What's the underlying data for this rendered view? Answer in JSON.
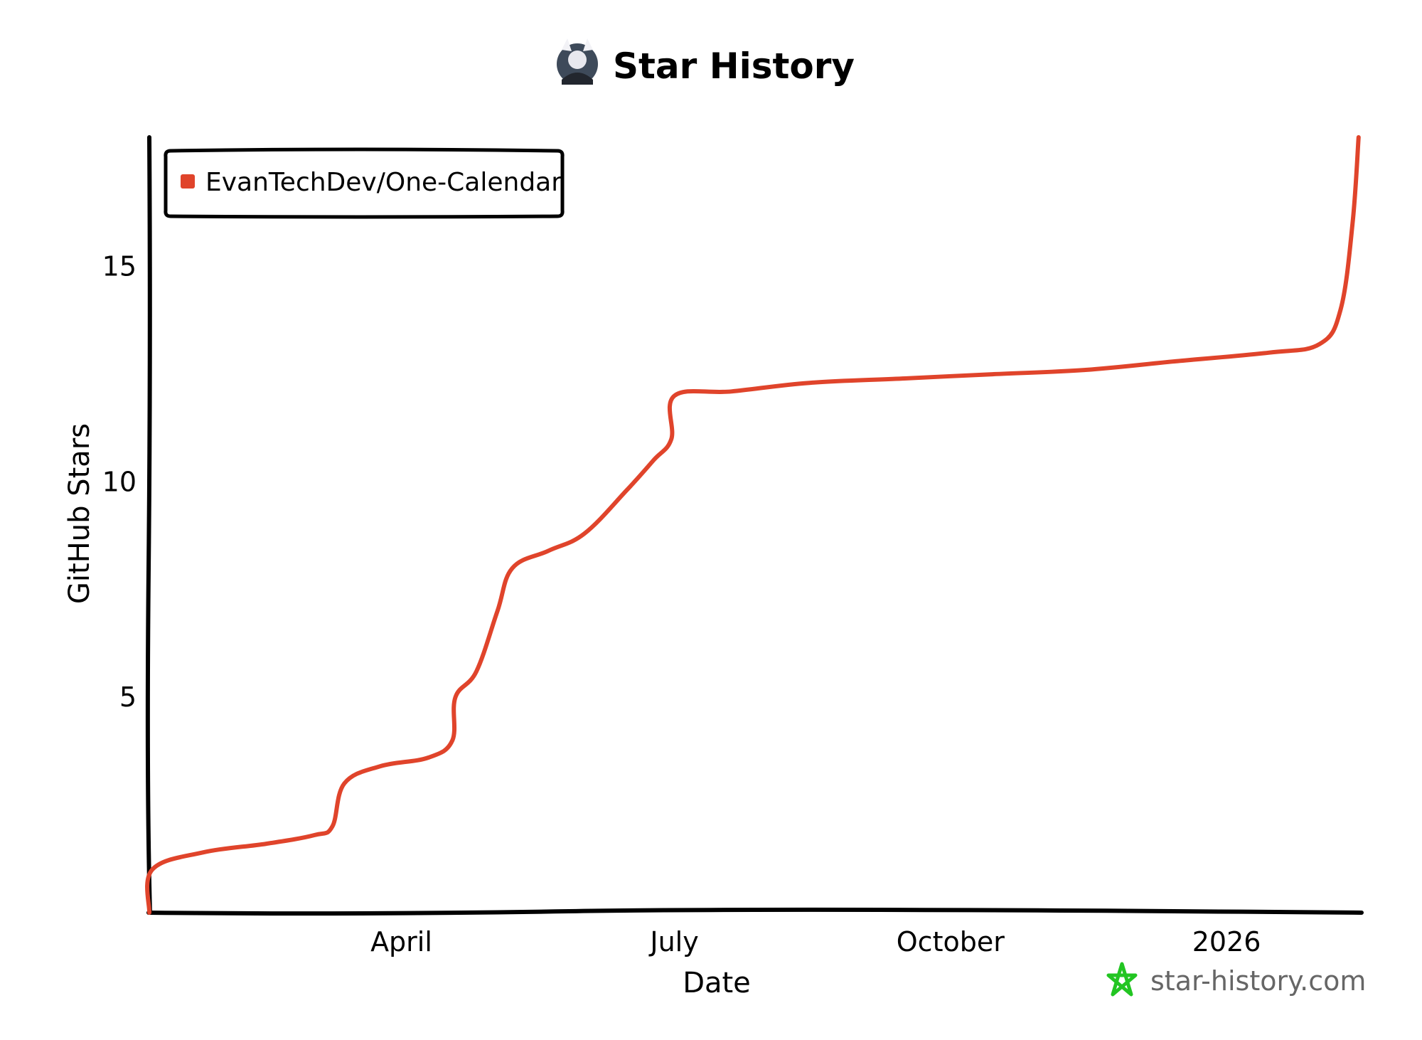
{
  "page": {
    "title": "Star History"
  },
  "colors": {
    "background": "#ffffff",
    "axis": "#000000",
    "series": "#e0442b",
    "watermark_star": "#22c522",
    "watermark_text": "#666666"
  },
  "chart_data": {
    "type": "line",
    "title": "Star History",
    "xlabel": "Date",
    "ylabel": "GitHub Stars",
    "x_type": "date",
    "xlim": [
      "2025-01-07",
      "2026-02-15"
    ],
    "ylim": [
      0,
      18
    ],
    "x_ticks": [
      {
        "label": "April",
        "date": "2025-04-01"
      },
      {
        "label": "July",
        "date": "2025-07-01"
      },
      {
        "label": "October",
        "date": "2025-10-01"
      },
      {
        "label": "2026",
        "date": "2026-01-01"
      }
    ],
    "y_ticks": [
      5,
      10,
      15
    ],
    "grid": false,
    "legend": {
      "placement": "top-left",
      "entries": [
        "EvanTechDev/One-Calendar"
      ]
    },
    "series": [
      {
        "name": "EvanTechDev/One-Calendar",
        "color": "#e0442b",
        "points": [
          {
            "x": "2025-01-07",
            "y": 0
          },
          {
            "x": "2025-01-08",
            "y": 1
          },
          {
            "x": "2025-01-25",
            "y": 1.4
          },
          {
            "x": "2025-02-15",
            "y": 1.6
          },
          {
            "x": "2025-03-03",
            "y": 1.8
          },
          {
            "x": "2025-03-09",
            "y": 2
          },
          {
            "x": "2025-03-13",
            "y": 3
          },
          {
            "x": "2025-03-25",
            "y": 3.4
          },
          {
            "x": "2025-04-10",
            "y": 3.6
          },
          {
            "x": "2025-04-18",
            "y": 4
          },
          {
            "x": "2025-04-19",
            "y": 5
          },
          {
            "x": "2025-04-26",
            "y": 5.6
          },
          {
            "x": "2025-05-03",
            "y": 7
          },
          {
            "x": "2025-05-08",
            "y": 8
          },
          {
            "x": "2025-05-20",
            "y": 8.4
          },
          {
            "x": "2025-06-01",
            "y": 8.8
          },
          {
            "x": "2025-06-15",
            "y": 9.8
          },
          {
            "x": "2025-06-24",
            "y": 10.5
          },
          {
            "x": "2025-06-30",
            "y": 11
          },
          {
            "x": "2025-07-01",
            "y": 12
          },
          {
            "x": "2025-07-20",
            "y": 12.1
          },
          {
            "x": "2025-08-15",
            "y": 12.3
          },
          {
            "x": "2025-09-15",
            "y": 12.4
          },
          {
            "x": "2025-10-15",
            "y": 12.5
          },
          {
            "x": "2025-11-15",
            "y": 12.6
          },
          {
            "x": "2025-12-15",
            "y": 12.8
          },
          {
            "x": "2026-01-15",
            "y": 13
          },
          {
            "x": "2026-02-01",
            "y": 13.2
          },
          {
            "x": "2026-02-08",
            "y": 14
          },
          {
            "x": "2026-02-12",
            "y": 16
          },
          {
            "x": "2026-02-14",
            "y": 18
          }
        ]
      }
    ]
  },
  "watermark": {
    "icon": "star-icon",
    "text": "star-history.com"
  }
}
